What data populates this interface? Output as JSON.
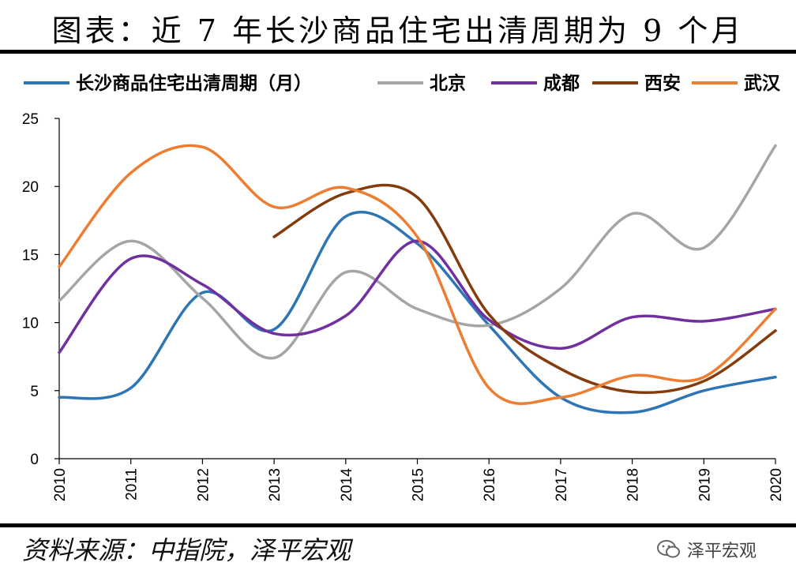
{
  "title": "图表：近 7 年长沙商品住宅出清周期为 9 个月",
  "source": "资料来源：中指院，泽平宏观",
  "watermark": "泽平宏观",
  "chart_data": {
    "type": "line",
    "x": [
      "2010",
      "2011",
      "2012",
      "2013",
      "2014",
      "2015",
      "2016",
      "2017",
      "2018",
      "2019",
      "2020"
    ],
    "ylim": [
      0,
      25
    ],
    "yticks": [
      0,
      5,
      10,
      15,
      20,
      25
    ],
    "legend_position": "top",
    "grid": false,
    "series": [
      {
        "name": "长沙商品住宅出清周期（月）",
        "color": "#2E75B6",
        "values": [
          4.5,
          5.2,
          12.2,
          9.5,
          17.8,
          15.8,
          9.8,
          4.5,
          3.4,
          5.0,
          6.0
        ]
      },
      {
        "name": "北京",
        "color": "#A5A5A5",
        "values": [
          11.6,
          16.0,
          11.8,
          7.4,
          13.7,
          11.0,
          9.8,
          12.5,
          18.0,
          15.5,
          23.0
        ]
      },
      {
        "name": "成都",
        "color": "#7030A0",
        "values": [
          7.8,
          14.7,
          12.8,
          9.2,
          10.5,
          16.0,
          10.2,
          8.1,
          10.4,
          10.1,
          11.0
        ]
      },
      {
        "name": "西安",
        "color": "#843C0C",
        "values": [
          null,
          null,
          null,
          16.3,
          19.5,
          19.2,
          10.6,
          6.6,
          4.9,
          5.7,
          9.4
        ]
      },
      {
        "name": "武汉",
        "color": "#ED7D31",
        "values": [
          14.1,
          21.0,
          22.9,
          18.5,
          19.9,
          16.3,
          5.2,
          4.5,
          6.1,
          6.0,
          11.0
        ]
      }
    ]
  }
}
